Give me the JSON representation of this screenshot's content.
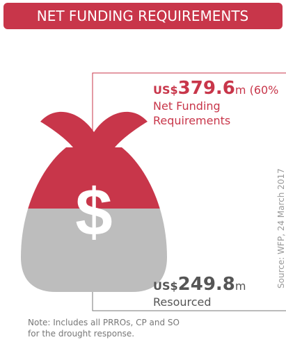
{
  "header": {
    "title": "NET FUNDING REQUIREMENTS"
  },
  "funding": {
    "currency": "US$",
    "amount": "379.6",
    "unit": "m (60%",
    "label": [
      "Net Funding",
      "Requirements"
    ]
  },
  "resourced": {
    "currency": "US$",
    "amount": "249.8",
    "unit": "m",
    "label": "Resourced"
  },
  "icon": {
    "symbol": "$"
  },
  "source": "Source: WFP, 24 March 2017",
  "note": [
    "Note: Includes all PRROs, CP and SO",
    "for the drought response."
  ]
}
